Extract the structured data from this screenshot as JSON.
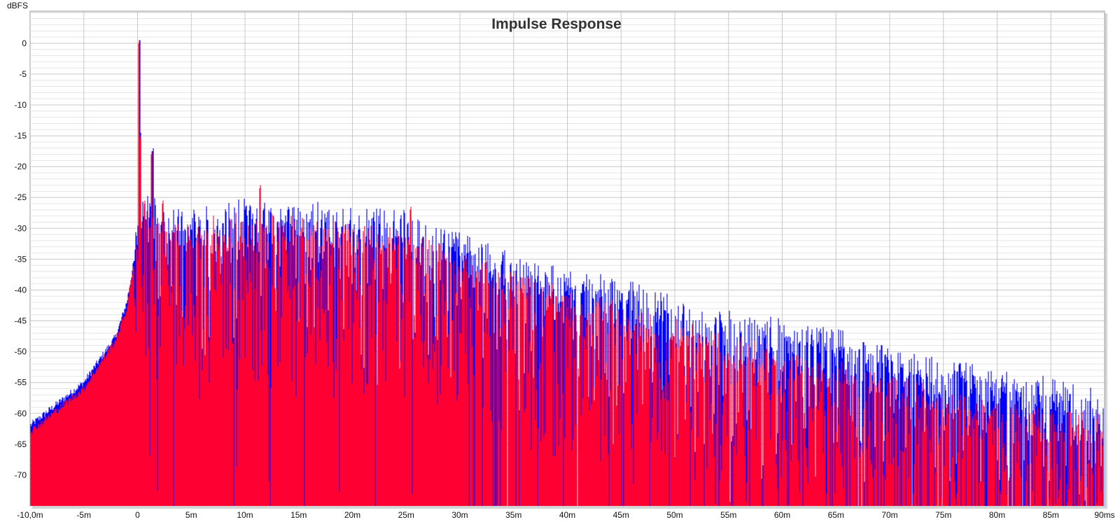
{
  "chart_data": {
    "type": "area",
    "title": "Impulse Response",
    "ylabel": "dBFS",
    "xlabel": "",
    "xlim": [
      -10,
      90
    ],
    "ylim": [
      -75,
      5.2
    ],
    "grid": true,
    "x_ticks": [
      -10,
      -5,
      0,
      5,
      10,
      15,
      20,
      25,
      30,
      35,
      40,
      45,
      50,
      55,
      60,
      65,
      70,
      75,
      80,
      85,
      90
    ],
    "x_tick_labels": [
      "-10,0m",
      "-5m",
      "0",
      "5m",
      "10m",
      "15m",
      "20m",
      "25m",
      "30m",
      "35m",
      "40m",
      "45m",
      "50m",
      "55m",
      "60m",
      "65m",
      "70m",
      "75m",
      "80m",
      "85m",
      "90ms"
    ],
    "y_ticks": [
      0,
      -5,
      -10,
      -15,
      -20,
      -25,
      -30,
      -35,
      -40,
      -45,
      -50,
      -55,
      -60,
      -65,
      -70
    ],
    "y_tick_labels": [
      "0",
      "-5",
      "-10",
      "-15",
      "-20",
      "-25",
      "-30",
      "-35",
      "-40",
      "-45",
      "-50",
      "-55",
      "-60",
      "-65",
      "-70"
    ],
    "series": [
      {
        "name": "blue",
        "color": "#0000ff",
        "envelope": [
          [
            -10,
            -62
          ],
          [
            -5,
            -55
          ],
          [
            -2,
            -47.5
          ],
          [
            -1,
            -42
          ],
          [
            -0.3,
            -35
          ],
          [
            0,
            -33
          ],
          [
            0.5,
            -27
          ],
          [
            3,
            -31
          ],
          [
            10,
            -29
          ],
          [
            15,
            -29
          ],
          [
            25,
            -31
          ],
          [
            30,
            -34
          ],
          [
            35,
            -38
          ],
          [
            45,
            -42
          ],
          [
            55,
            -47
          ],
          [
            65,
            -50
          ],
          [
            75,
            -55
          ],
          [
            85,
            -58
          ],
          [
            90,
            -60
          ]
        ],
        "peaks": [
          [
            0.15,
            0
          ],
          [
            0.2,
            -15
          ],
          [
            1.4,
            -17.5
          ],
          [
            10,
            -27
          ],
          [
            14,
            -27
          ],
          [
            16,
            -29
          ],
          [
            24.8,
            -29.5
          ],
          [
            33,
            -38
          ]
        ]
      },
      {
        "name": "red",
        "color": "#ff0033",
        "envelope": [
          [
            -10,
            -63
          ],
          [
            -5,
            -56
          ],
          [
            -2,
            -48
          ],
          [
            -1,
            -43
          ],
          [
            -0.3,
            -35
          ],
          [
            0,
            -35
          ],
          [
            0.5,
            -28
          ],
          [
            3,
            -33
          ],
          [
            10,
            -31
          ],
          [
            15,
            -32
          ],
          [
            25,
            -34
          ],
          [
            30,
            -37
          ],
          [
            35,
            -41
          ],
          [
            45,
            -46
          ],
          [
            55,
            -51
          ],
          [
            65,
            -55
          ],
          [
            75,
            -60
          ],
          [
            85,
            -63
          ],
          [
            90,
            -64
          ]
        ],
        "peaks": [
          [
            0.1,
            0
          ],
          [
            0.25,
            -15.5
          ],
          [
            1.3,
            -18
          ],
          [
            0.6,
            -26
          ],
          [
            2.3,
            -26
          ],
          [
            11.4,
            -23.5
          ],
          [
            25.4,
            -27
          ],
          [
            19.5,
            -32
          ]
        ]
      }
    ]
  }
}
